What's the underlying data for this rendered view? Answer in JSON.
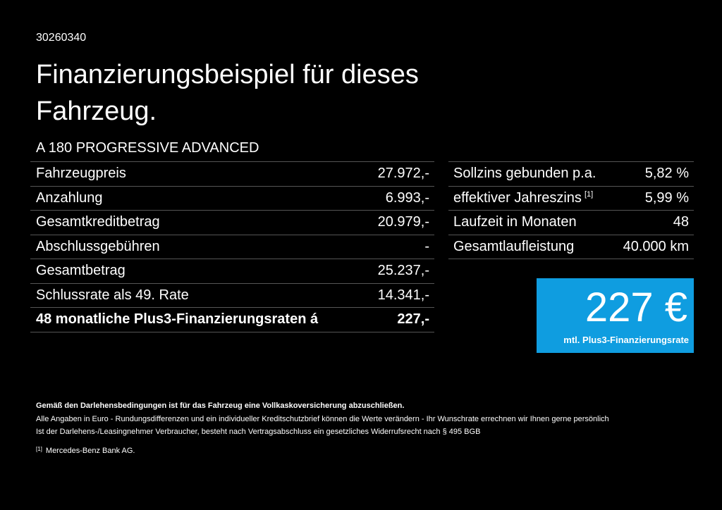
{
  "header": {
    "id": "30260340",
    "title": "Finanzierungsbeispiel für dieses Fahrzeug.",
    "model": "A 180 PROGRESSIVE ADVANCED"
  },
  "left_table": {
    "rows": [
      {
        "label": "Fahrzeugpreis",
        "value": "27.972,-"
      },
      {
        "label": "Anzahlung",
        "value": "6.993,-"
      },
      {
        "label": "Gesamtkreditbetrag",
        "value": "20.979,-"
      },
      {
        "label": "Abschlussgebühren",
        "value": "-"
      },
      {
        "label": "Gesamtbetrag",
        "value": "25.237,-"
      },
      {
        "label": "Schlussrate als 49. Rate",
        "value": "14.341,-"
      },
      {
        "label": "48 monatliche Plus3-Finanzierungsraten á",
        "value": "227,-"
      }
    ]
  },
  "right_table": {
    "rows": [
      {
        "label": "Sollzins gebunden p.a.",
        "value": "5,82 %"
      },
      {
        "label": "effektiver Jahreszins",
        "ref": "[1]",
        "value": "5,99 %"
      },
      {
        "label": "Laufzeit in Monaten",
        "value": "48"
      },
      {
        "label": "Gesamtlaufleistung",
        "value": "40.000 km"
      }
    ]
  },
  "rate_box": {
    "amount": "227 €",
    "caption": "mtl. Plus3-Finanzierungsrate"
  },
  "footnotes": {
    "lines": [
      "Gemäß den Darlehensbedingungen ist für das Fahrzeug eine Vollkaskoversicherung abzuschließen.",
      "Alle Angaben in Euro - Rundungsdifferenzen und ein individueller Kreditschutzbrief können die Werte verändern - Ihr Wunschrate errechnen wir Ihnen gerne persönlich",
      "Ist der Darlehens-/Leasingnehmer Verbraucher, besteht nach Vertragsabschluss ein gesetzliches Widerrufsrecht nach § 495 BGB"
    ],
    "refs": [
      {
        "mark": "[1]",
        "text": "Mercedes-Benz Bank AG."
      }
    ]
  }
}
